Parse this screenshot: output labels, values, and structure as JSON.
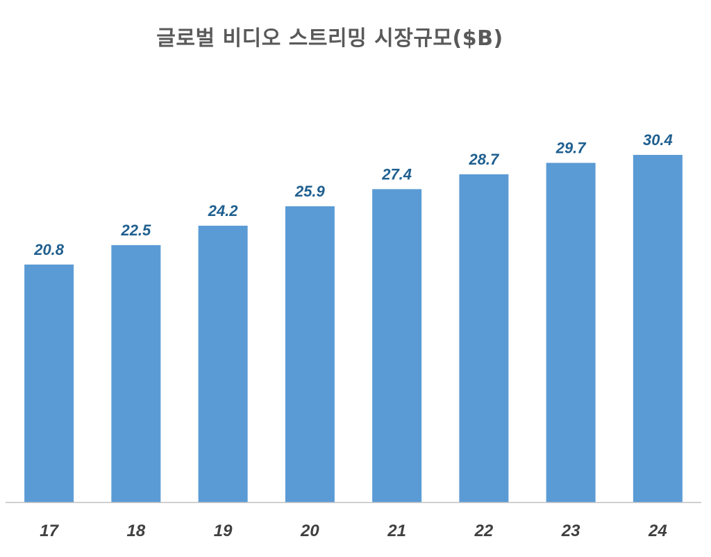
{
  "chart_data": {
    "type": "bar",
    "title": "글로벌 비디오 스트리밍 시장규모($B)",
    "xlabel": "",
    "ylabel": "",
    "categories": [
      "17",
      "18",
      "19",
      "20",
      "21",
      "22",
      "23",
      "24"
    ],
    "values": [
      20.8,
      22.5,
      24.2,
      25.9,
      27.4,
      28.7,
      29.7,
      30.4
    ],
    "data_labels": [
      "20.8",
      "22.5",
      "24.2",
      "25.9",
      "27.4",
      "28.7",
      "29.7",
      "30.4"
    ],
    "ylim": [
      0,
      30.4
    ],
    "grid": false,
    "legend": "none",
    "colors": {
      "bar": "#5b9bd5",
      "data_label": "#1f5f8f",
      "tick_label": "#404040",
      "title": "#595959"
    }
  }
}
